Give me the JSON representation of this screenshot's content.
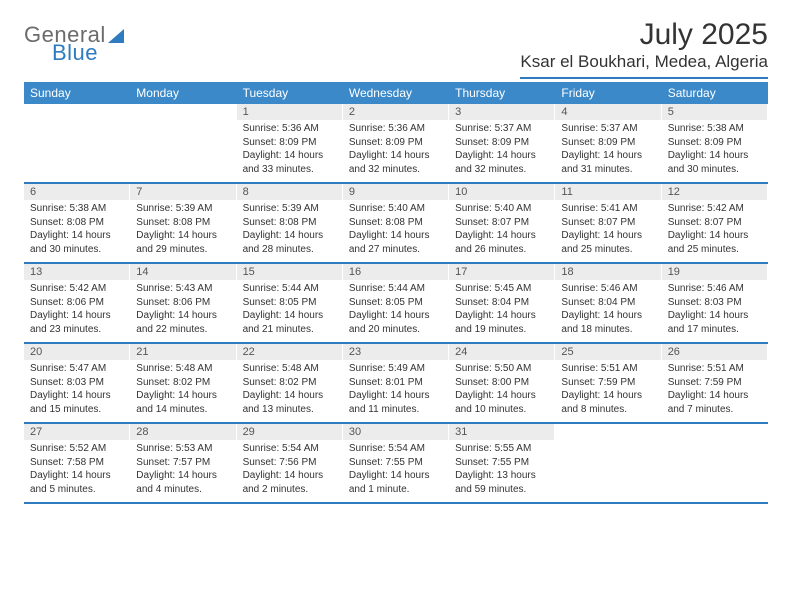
{
  "logo": {
    "word1": "General",
    "word2": "Blue"
  },
  "title": "July 2025",
  "location": "Ksar el Boukhari, Medea, Algeria",
  "colors": {
    "brand_blue": "#2f7bbf",
    "header_blue": "#3b89c9",
    "daynum_bg": "#ececec",
    "text": "#333333",
    "logo_gray": "#6b6b6b"
  },
  "dow": [
    "Sunday",
    "Monday",
    "Tuesday",
    "Wednesday",
    "Thursday",
    "Friday",
    "Saturday"
  ],
  "weeks": [
    [
      {
        "n": "",
        "sr": "",
        "ss": "",
        "dl": ""
      },
      {
        "n": "",
        "sr": "",
        "ss": "",
        "dl": ""
      },
      {
        "n": "1",
        "sr": "Sunrise: 5:36 AM",
        "ss": "Sunset: 8:09 PM",
        "dl": "Daylight: 14 hours and 33 minutes."
      },
      {
        "n": "2",
        "sr": "Sunrise: 5:36 AM",
        "ss": "Sunset: 8:09 PM",
        "dl": "Daylight: 14 hours and 32 minutes."
      },
      {
        "n": "3",
        "sr": "Sunrise: 5:37 AM",
        "ss": "Sunset: 8:09 PM",
        "dl": "Daylight: 14 hours and 32 minutes."
      },
      {
        "n": "4",
        "sr": "Sunrise: 5:37 AM",
        "ss": "Sunset: 8:09 PM",
        "dl": "Daylight: 14 hours and 31 minutes."
      },
      {
        "n": "5",
        "sr": "Sunrise: 5:38 AM",
        "ss": "Sunset: 8:09 PM",
        "dl": "Daylight: 14 hours and 30 minutes."
      }
    ],
    [
      {
        "n": "6",
        "sr": "Sunrise: 5:38 AM",
        "ss": "Sunset: 8:08 PM",
        "dl": "Daylight: 14 hours and 30 minutes."
      },
      {
        "n": "7",
        "sr": "Sunrise: 5:39 AM",
        "ss": "Sunset: 8:08 PM",
        "dl": "Daylight: 14 hours and 29 minutes."
      },
      {
        "n": "8",
        "sr": "Sunrise: 5:39 AM",
        "ss": "Sunset: 8:08 PM",
        "dl": "Daylight: 14 hours and 28 minutes."
      },
      {
        "n": "9",
        "sr": "Sunrise: 5:40 AM",
        "ss": "Sunset: 8:08 PM",
        "dl": "Daylight: 14 hours and 27 minutes."
      },
      {
        "n": "10",
        "sr": "Sunrise: 5:40 AM",
        "ss": "Sunset: 8:07 PM",
        "dl": "Daylight: 14 hours and 26 minutes."
      },
      {
        "n": "11",
        "sr": "Sunrise: 5:41 AM",
        "ss": "Sunset: 8:07 PM",
        "dl": "Daylight: 14 hours and 25 minutes."
      },
      {
        "n": "12",
        "sr": "Sunrise: 5:42 AM",
        "ss": "Sunset: 8:07 PM",
        "dl": "Daylight: 14 hours and 25 minutes."
      }
    ],
    [
      {
        "n": "13",
        "sr": "Sunrise: 5:42 AM",
        "ss": "Sunset: 8:06 PM",
        "dl": "Daylight: 14 hours and 23 minutes."
      },
      {
        "n": "14",
        "sr": "Sunrise: 5:43 AM",
        "ss": "Sunset: 8:06 PM",
        "dl": "Daylight: 14 hours and 22 minutes."
      },
      {
        "n": "15",
        "sr": "Sunrise: 5:44 AM",
        "ss": "Sunset: 8:05 PM",
        "dl": "Daylight: 14 hours and 21 minutes."
      },
      {
        "n": "16",
        "sr": "Sunrise: 5:44 AM",
        "ss": "Sunset: 8:05 PM",
        "dl": "Daylight: 14 hours and 20 minutes."
      },
      {
        "n": "17",
        "sr": "Sunrise: 5:45 AM",
        "ss": "Sunset: 8:04 PM",
        "dl": "Daylight: 14 hours and 19 minutes."
      },
      {
        "n": "18",
        "sr": "Sunrise: 5:46 AM",
        "ss": "Sunset: 8:04 PM",
        "dl": "Daylight: 14 hours and 18 minutes."
      },
      {
        "n": "19",
        "sr": "Sunrise: 5:46 AM",
        "ss": "Sunset: 8:03 PM",
        "dl": "Daylight: 14 hours and 17 minutes."
      }
    ],
    [
      {
        "n": "20",
        "sr": "Sunrise: 5:47 AM",
        "ss": "Sunset: 8:03 PM",
        "dl": "Daylight: 14 hours and 15 minutes."
      },
      {
        "n": "21",
        "sr": "Sunrise: 5:48 AM",
        "ss": "Sunset: 8:02 PM",
        "dl": "Daylight: 14 hours and 14 minutes."
      },
      {
        "n": "22",
        "sr": "Sunrise: 5:48 AM",
        "ss": "Sunset: 8:02 PM",
        "dl": "Daylight: 14 hours and 13 minutes."
      },
      {
        "n": "23",
        "sr": "Sunrise: 5:49 AM",
        "ss": "Sunset: 8:01 PM",
        "dl": "Daylight: 14 hours and 11 minutes."
      },
      {
        "n": "24",
        "sr": "Sunrise: 5:50 AM",
        "ss": "Sunset: 8:00 PM",
        "dl": "Daylight: 14 hours and 10 minutes."
      },
      {
        "n": "25",
        "sr": "Sunrise: 5:51 AM",
        "ss": "Sunset: 7:59 PM",
        "dl": "Daylight: 14 hours and 8 minutes."
      },
      {
        "n": "26",
        "sr": "Sunrise: 5:51 AM",
        "ss": "Sunset: 7:59 PM",
        "dl": "Daylight: 14 hours and 7 minutes."
      }
    ],
    [
      {
        "n": "27",
        "sr": "Sunrise: 5:52 AM",
        "ss": "Sunset: 7:58 PM",
        "dl": "Daylight: 14 hours and 5 minutes."
      },
      {
        "n": "28",
        "sr": "Sunrise: 5:53 AM",
        "ss": "Sunset: 7:57 PM",
        "dl": "Daylight: 14 hours and 4 minutes."
      },
      {
        "n": "29",
        "sr": "Sunrise: 5:54 AM",
        "ss": "Sunset: 7:56 PM",
        "dl": "Daylight: 14 hours and 2 minutes."
      },
      {
        "n": "30",
        "sr": "Sunrise: 5:54 AM",
        "ss": "Sunset: 7:55 PM",
        "dl": "Daylight: 14 hours and 1 minute."
      },
      {
        "n": "31",
        "sr": "Sunrise: 5:55 AM",
        "ss": "Sunset: 7:55 PM",
        "dl": "Daylight: 13 hours and 59 minutes."
      },
      {
        "n": "",
        "sr": "",
        "ss": "",
        "dl": ""
      },
      {
        "n": "",
        "sr": "",
        "ss": "",
        "dl": ""
      }
    ]
  ]
}
